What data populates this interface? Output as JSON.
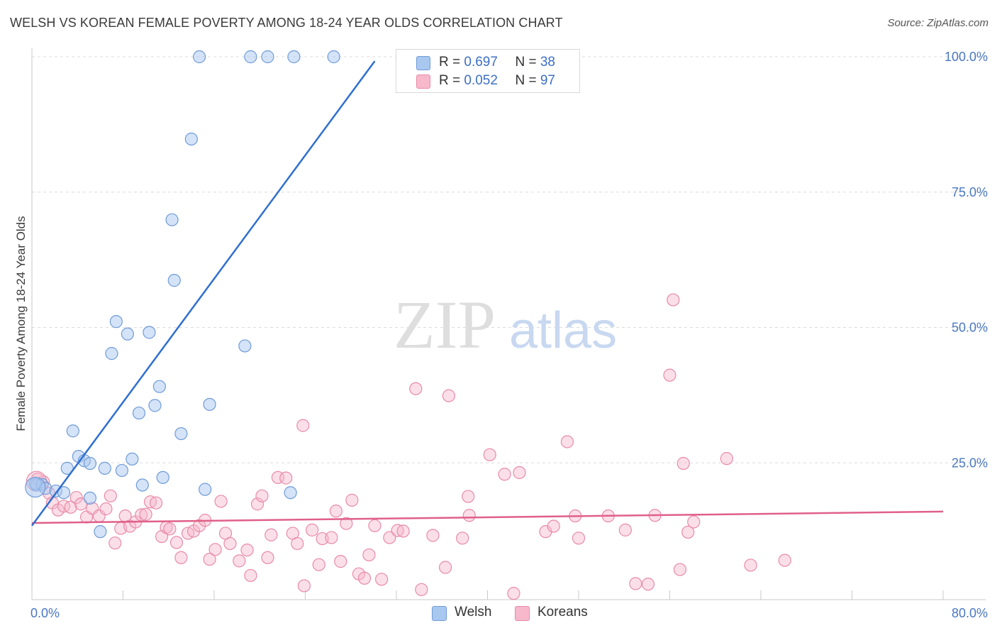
{
  "header": {
    "title": "WELSH VS KOREAN FEMALE POVERTY AMONG 18-24 YEAR OLDS CORRELATION CHART",
    "source": "Source: ZipAtlas.com"
  },
  "watermark": {
    "zip": "ZIP",
    "atlas": "atlas"
  },
  "legend": {
    "welsh": {
      "r_label": "R = ",
      "r_value": "0.697",
      "n_label": "N = ",
      "n_value": "38"
    },
    "koreans": {
      "r_label": "R = ",
      "r_value": "0.052",
      "n_label": "N = ",
      "n_value": "97"
    }
  },
  "colors": {
    "welsh_fill": "#a9c8f0",
    "welsh_stroke": "#6f9bd8",
    "welsh_line": "#2f6fd0",
    "koreans_fill": "#f7b8cc",
    "koreans_stroke": "#e88aa8",
    "koreans_line": "#e0608a",
    "grid": "#dcdcdc",
    "axis_text": "#4a78c2"
  },
  "chart_data": {
    "type": "scatter",
    "title": "WELSH VS KOREAN FEMALE POVERTY AMONG 18-24 YEAR OLDS CORRELATION CHART",
    "xlabel": "",
    "ylabel": "Female Poverty Among 18-24 Year Olds",
    "xlim": [
      0,
      80
    ],
    "ylim": [
      0,
      105
    ],
    "x_tick_labels": [
      "0.0%",
      "80.0%"
    ],
    "y_ticks": [
      25,
      50,
      75,
      100
    ],
    "y_tick_labels": [
      "25.0%",
      "50.0%",
      "75.0%",
      "100.0%"
    ],
    "grid": true,
    "legend_position": "top-center",
    "series": [
      {
        "name": "Welsh",
        "r": 0.697,
        "n": 38,
        "trend": {
          "x": [
            0,
            30.1
          ],
          "y": [
            13.4,
            99.2
          ]
        },
        "points": [
          [
            0.4,
            20.9
          ],
          [
            0.9,
            21.0
          ],
          [
            1.2,
            20.3
          ],
          [
            2.1,
            19.8
          ],
          [
            2.8,
            19.5
          ],
          [
            3.1,
            24.0
          ],
          [
            3.6,
            30.9
          ],
          [
            4.1,
            26.2
          ],
          [
            4.6,
            25.4
          ],
          [
            5.1,
            24.9
          ],
          [
            5.1,
            18.5
          ],
          [
            6.0,
            12.3
          ],
          [
            6.4,
            24.0
          ],
          [
            7.0,
            45.2
          ],
          [
            7.4,
            51.1
          ],
          [
            7.9,
            23.6
          ],
          [
            8.4,
            48.8
          ],
          [
            8.8,
            25.7
          ],
          [
            9.4,
            34.2
          ],
          [
            9.7,
            20.9
          ],
          [
            10.3,
            49.1
          ],
          [
            10.8,
            35.6
          ],
          [
            11.2,
            39.1
          ],
          [
            11.5,
            22.3
          ],
          [
            12.3,
            69.9
          ],
          [
            12.5,
            58.7
          ],
          [
            13.1,
            30.4
          ],
          [
            14.0,
            84.8
          ],
          [
            14.7,
            100.0
          ],
          [
            15.2,
            20.1
          ],
          [
            15.6,
            35.8
          ],
          [
            18.7,
            46.6
          ],
          [
            19.2,
            100.0
          ],
          [
            20.7,
            100.0
          ],
          [
            22.7,
            19.5
          ],
          [
            23.0,
            100.0
          ],
          [
            26.5,
            100.0
          ],
          [
            0.3,
            21.2
          ]
        ]
      },
      {
        "name": "Koreans",
        "r": 0.052,
        "n": 97,
        "trend": {
          "x": [
            0,
            80
          ],
          "y": [
            13.9,
            16.0
          ]
        },
        "points": [
          [
            0.5,
            22.0
          ],
          [
            1.0,
            21.5
          ],
          [
            1.5,
            19.4
          ],
          [
            1.8,
            17.6
          ],
          [
            2.3,
            16.3
          ],
          [
            2.8,
            17.0
          ],
          [
            3.4,
            16.8
          ],
          [
            3.9,
            18.6
          ],
          [
            4.3,
            17.4
          ],
          [
            4.8,
            15.0
          ],
          [
            5.3,
            16.6
          ],
          [
            5.9,
            15.2
          ],
          [
            6.5,
            16.5
          ],
          [
            6.9,
            18.9
          ],
          [
            7.3,
            10.2
          ],
          [
            7.8,
            12.9
          ],
          [
            8.2,
            15.2
          ],
          [
            8.6,
            13.3
          ],
          [
            9.1,
            14.1
          ],
          [
            9.6,
            15.4
          ],
          [
            10.0,
            15.5
          ],
          [
            10.4,
            17.8
          ],
          [
            10.9,
            17.6
          ],
          [
            11.4,
            11.4
          ],
          [
            11.8,
            13.1
          ],
          [
            12.1,
            12.8
          ],
          [
            12.7,
            10.3
          ],
          [
            13.1,
            7.5
          ],
          [
            13.7,
            12.0
          ],
          [
            14.2,
            12.4
          ],
          [
            14.7,
            13.4
          ],
          [
            15.2,
            14.4
          ],
          [
            15.6,
            7.2
          ],
          [
            16.1,
            9.0
          ],
          [
            16.6,
            17.9
          ],
          [
            17.0,
            12.0
          ],
          [
            17.4,
            10.1
          ],
          [
            18.2,
            6.9
          ],
          [
            18.9,
            8.9
          ],
          [
            19.2,
            4.2
          ],
          [
            19.8,
            17.4
          ],
          [
            20.2,
            18.9
          ],
          [
            20.7,
            7.5
          ],
          [
            21.0,
            11.7
          ],
          [
            21.6,
            22.3
          ],
          [
            22.3,
            22.2
          ],
          [
            22.9,
            12.0
          ],
          [
            23.3,
            10.1
          ],
          [
            23.8,
            31.9
          ],
          [
            23.9,
            2.3
          ],
          [
            24.6,
            12.6
          ],
          [
            25.2,
            6.2
          ],
          [
            25.5,
            11.0
          ],
          [
            26.3,
            11.2
          ],
          [
            26.7,
            16.1
          ],
          [
            27.1,
            6.8
          ],
          [
            27.6,
            13.8
          ],
          [
            28.1,
            18.1
          ],
          [
            28.7,
            4.5
          ],
          [
            29.2,
            3.7
          ],
          [
            29.6,
            8.0
          ],
          [
            30.1,
            13.4
          ],
          [
            30.7,
            3.5
          ],
          [
            31.4,
            11.2
          ],
          [
            32.1,
            12.5
          ],
          [
            32.6,
            12.4
          ],
          [
            33.7,
            38.7
          ],
          [
            34.2,
            1.6
          ],
          [
            35.2,
            11.6
          ],
          [
            36.3,
            5.7
          ],
          [
            36.6,
            37.4
          ],
          [
            37.8,
            11.1
          ],
          [
            38.3,
            18.8
          ],
          [
            38.4,
            15.3
          ],
          [
            40.2,
            26.5
          ],
          [
            41.5,
            22.9
          ],
          [
            42.3,
            0.9
          ],
          [
            42.8,
            23.2
          ],
          [
            45.1,
            12.3
          ],
          [
            45.8,
            13.3
          ],
          [
            47.0,
            28.9
          ],
          [
            47.7,
            15.2
          ],
          [
            48.0,
            11.1
          ],
          [
            50.6,
            15.2
          ],
          [
            52.1,
            12.6
          ],
          [
            53.0,
            2.7
          ],
          [
            54.1,
            2.6
          ],
          [
            54.7,
            15.3
          ],
          [
            56.0,
            41.2
          ],
          [
            56.3,
            55.1
          ],
          [
            56.9,
            5.3
          ],
          [
            57.2,
            24.9
          ],
          [
            57.6,
            12.2
          ],
          [
            58.1,
            14.1
          ],
          [
            61.0,
            25.8
          ],
          [
            63.1,
            6.1
          ],
          [
            66.1,
            7.0
          ]
        ]
      }
    ]
  },
  "bottom_legend": {
    "welsh_label": "Welsh",
    "koreans_label": "Koreans"
  }
}
